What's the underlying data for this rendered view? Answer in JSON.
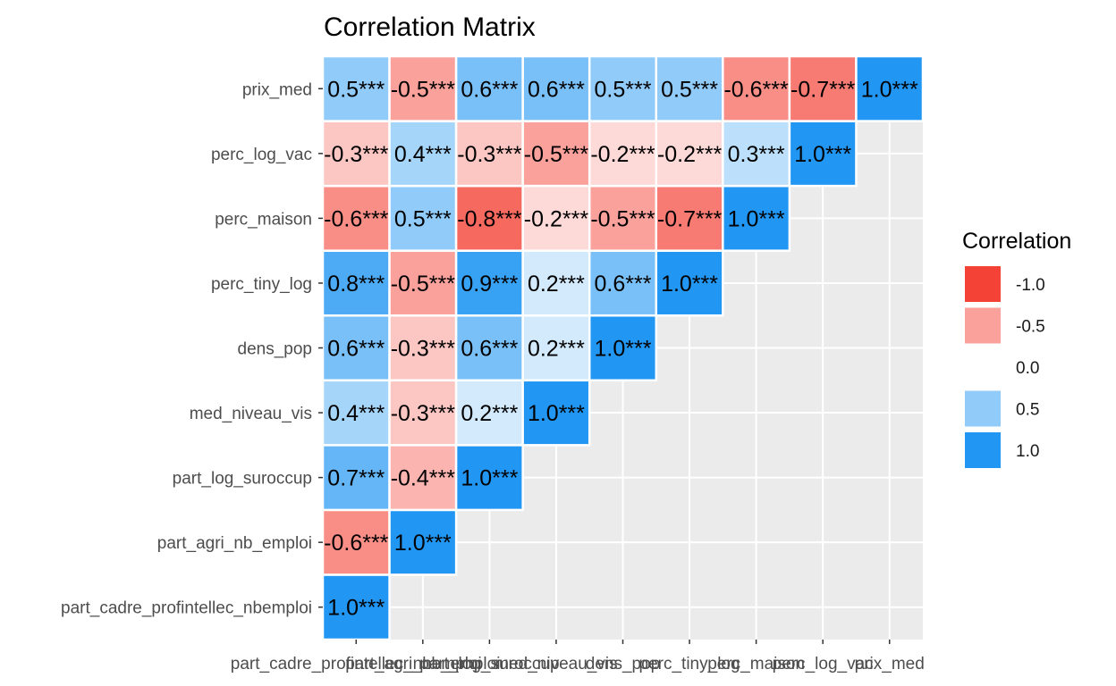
{
  "chart_data": {
    "type": "heatmap",
    "title": "Correlation Matrix",
    "variables": [
      "part_cadre_profintellec_nbemploi",
      "part_agri_nb_emploi",
      "part_log_suroccup",
      "med_niveau_vis",
      "dens_pop",
      "perc_tiny_log",
      "perc_maison",
      "perc_log_vac",
      "prix_med"
    ],
    "cells": [
      {
        "row": "part_cadre_profintellec_nbemploi",
        "col": "part_cadre_profintellec_nbemploi",
        "value": 1.0,
        "label": "1.0***"
      },
      {
        "row": "part_agri_nb_emploi",
        "col": "part_cadre_profintellec_nbemploi",
        "value": -0.6,
        "label": "-0.6***"
      },
      {
        "row": "part_agri_nb_emploi",
        "col": "part_agri_nb_emploi",
        "value": 1.0,
        "label": "1.0***"
      },
      {
        "row": "part_log_suroccup",
        "col": "part_cadre_profintellec_nbemploi",
        "value": 0.7,
        "label": "0.7***"
      },
      {
        "row": "part_log_suroccup",
        "col": "part_agri_nb_emploi",
        "value": -0.4,
        "label": "-0.4***"
      },
      {
        "row": "part_log_suroccup",
        "col": "part_log_suroccup",
        "value": 1.0,
        "label": "1.0***"
      },
      {
        "row": "med_niveau_vis",
        "col": "part_cadre_profintellec_nbemploi",
        "value": 0.4,
        "label": "0.4***"
      },
      {
        "row": "med_niveau_vis",
        "col": "part_agri_nb_emploi",
        "value": -0.3,
        "label": "-0.3***"
      },
      {
        "row": "med_niveau_vis",
        "col": "part_log_suroccup",
        "value": 0.2,
        "label": "0.2***"
      },
      {
        "row": "med_niveau_vis",
        "col": "med_niveau_vis",
        "value": 1.0,
        "label": "1.0***"
      },
      {
        "row": "dens_pop",
        "col": "part_cadre_profintellec_nbemploi",
        "value": 0.6,
        "label": "0.6***"
      },
      {
        "row": "dens_pop",
        "col": "part_agri_nb_emploi",
        "value": -0.3,
        "label": "-0.3***"
      },
      {
        "row": "dens_pop",
        "col": "part_log_suroccup",
        "value": 0.6,
        "label": "0.6***"
      },
      {
        "row": "dens_pop",
        "col": "med_niveau_vis",
        "value": 0.2,
        "label": "0.2***"
      },
      {
        "row": "dens_pop",
        "col": "dens_pop",
        "value": 1.0,
        "label": "1.0***"
      },
      {
        "row": "perc_tiny_log",
        "col": "part_cadre_profintellec_nbemploi",
        "value": 0.8,
        "label": "0.8***"
      },
      {
        "row": "perc_tiny_log",
        "col": "part_agri_nb_emploi",
        "value": -0.5,
        "label": "-0.5***"
      },
      {
        "row": "perc_tiny_log",
        "col": "part_log_suroccup",
        "value": 0.9,
        "label": "0.9***"
      },
      {
        "row": "perc_tiny_log",
        "col": "med_niveau_vis",
        "value": 0.2,
        "label": "0.2***"
      },
      {
        "row": "perc_tiny_log",
        "col": "dens_pop",
        "value": 0.6,
        "label": "0.6***"
      },
      {
        "row": "perc_tiny_log",
        "col": "perc_tiny_log",
        "value": 1.0,
        "label": "1.0***"
      },
      {
        "row": "perc_maison",
        "col": "part_cadre_profintellec_nbemploi",
        "value": -0.6,
        "label": "-0.6***"
      },
      {
        "row": "perc_maison",
        "col": "part_agri_nb_emploi",
        "value": 0.5,
        "label": "0.5***"
      },
      {
        "row": "perc_maison",
        "col": "part_log_suroccup",
        "value": -0.8,
        "label": "-0.8***"
      },
      {
        "row": "perc_maison",
        "col": "med_niveau_vis",
        "value": -0.2,
        "label": "-0.2***"
      },
      {
        "row": "perc_maison",
        "col": "dens_pop",
        "value": -0.5,
        "label": "-0.5***"
      },
      {
        "row": "perc_maison",
        "col": "perc_tiny_log",
        "value": -0.7,
        "label": "-0.7***"
      },
      {
        "row": "perc_maison",
        "col": "perc_maison",
        "value": 1.0,
        "label": "1.0***"
      },
      {
        "row": "perc_log_vac",
        "col": "part_cadre_profintellec_nbemploi",
        "value": -0.3,
        "label": "-0.3***"
      },
      {
        "row": "perc_log_vac",
        "col": "part_agri_nb_emploi",
        "value": 0.4,
        "label": "0.4***"
      },
      {
        "row": "perc_log_vac",
        "col": "part_log_suroccup",
        "value": -0.3,
        "label": "-0.3***"
      },
      {
        "row": "perc_log_vac",
        "col": "med_niveau_vis",
        "value": -0.5,
        "label": "-0.5***"
      },
      {
        "row": "perc_log_vac",
        "col": "dens_pop",
        "value": -0.2,
        "label": "-0.2***"
      },
      {
        "row": "perc_log_vac",
        "col": "perc_tiny_log",
        "value": -0.2,
        "label": "-0.2***"
      },
      {
        "row": "perc_log_vac",
        "col": "perc_maison",
        "value": 0.3,
        "label": "0.3***"
      },
      {
        "row": "perc_log_vac",
        "col": "perc_log_vac",
        "value": 1.0,
        "label": "1.0***"
      },
      {
        "row": "prix_med",
        "col": "part_cadre_profintellec_nbemploi",
        "value": 0.5,
        "label": "0.5***"
      },
      {
        "row": "prix_med",
        "col": "part_agri_nb_emploi",
        "value": -0.5,
        "label": "-0.5***"
      },
      {
        "row": "prix_med",
        "col": "part_log_suroccup",
        "value": 0.6,
        "label": "0.6***"
      },
      {
        "row": "prix_med",
        "col": "med_niveau_vis",
        "value": 0.6,
        "label": "0.6***"
      },
      {
        "row": "prix_med",
        "col": "dens_pop",
        "value": 0.5,
        "label": "0.5***"
      },
      {
        "row": "prix_med",
        "col": "perc_tiny_log",
        "value": 0.5,
        "label": "0.5***"
      },
      {
        "row": "prix_med",
        "col": "perc_maison",
        "value": -0.6,
        "label": "-0.6***"
      },
      {
        "row": "prix_med",
        "col": "perc_log_vac",
        "value": -0.7,
        "label": "-0.7***"
      },
      {
        "row": "prix_med",
        "col": "prix_med",
        "value": 1.0,
        "label": "1.0***"
      }
    ],
    "value_range": [
      -1,
      1
    ],
    "grid": true,
    "legend": {
      "title": "Correlation",
      "placement": "right",
      "entries": [
        {
          "label": "-1.0",
          "value": -1.0
        },
        {
          "label": "-0.5",
          "value": -0.5
        },
        {
          "label": "0.0",
          "value": 0.0
        },
        {
          "label": "0.5",
          "value": 0.5
        },
        {
          "label": "1.0",
          "value": 1.0
        }
      ]
    },
    "colors": {
      "negative": "#f44336",
      "mid": "#ffffff",
      "positive": "#2196f3",
      "panel_background": "#ebebeb",
      "grid": "#ffffff"
    }
  }
}
